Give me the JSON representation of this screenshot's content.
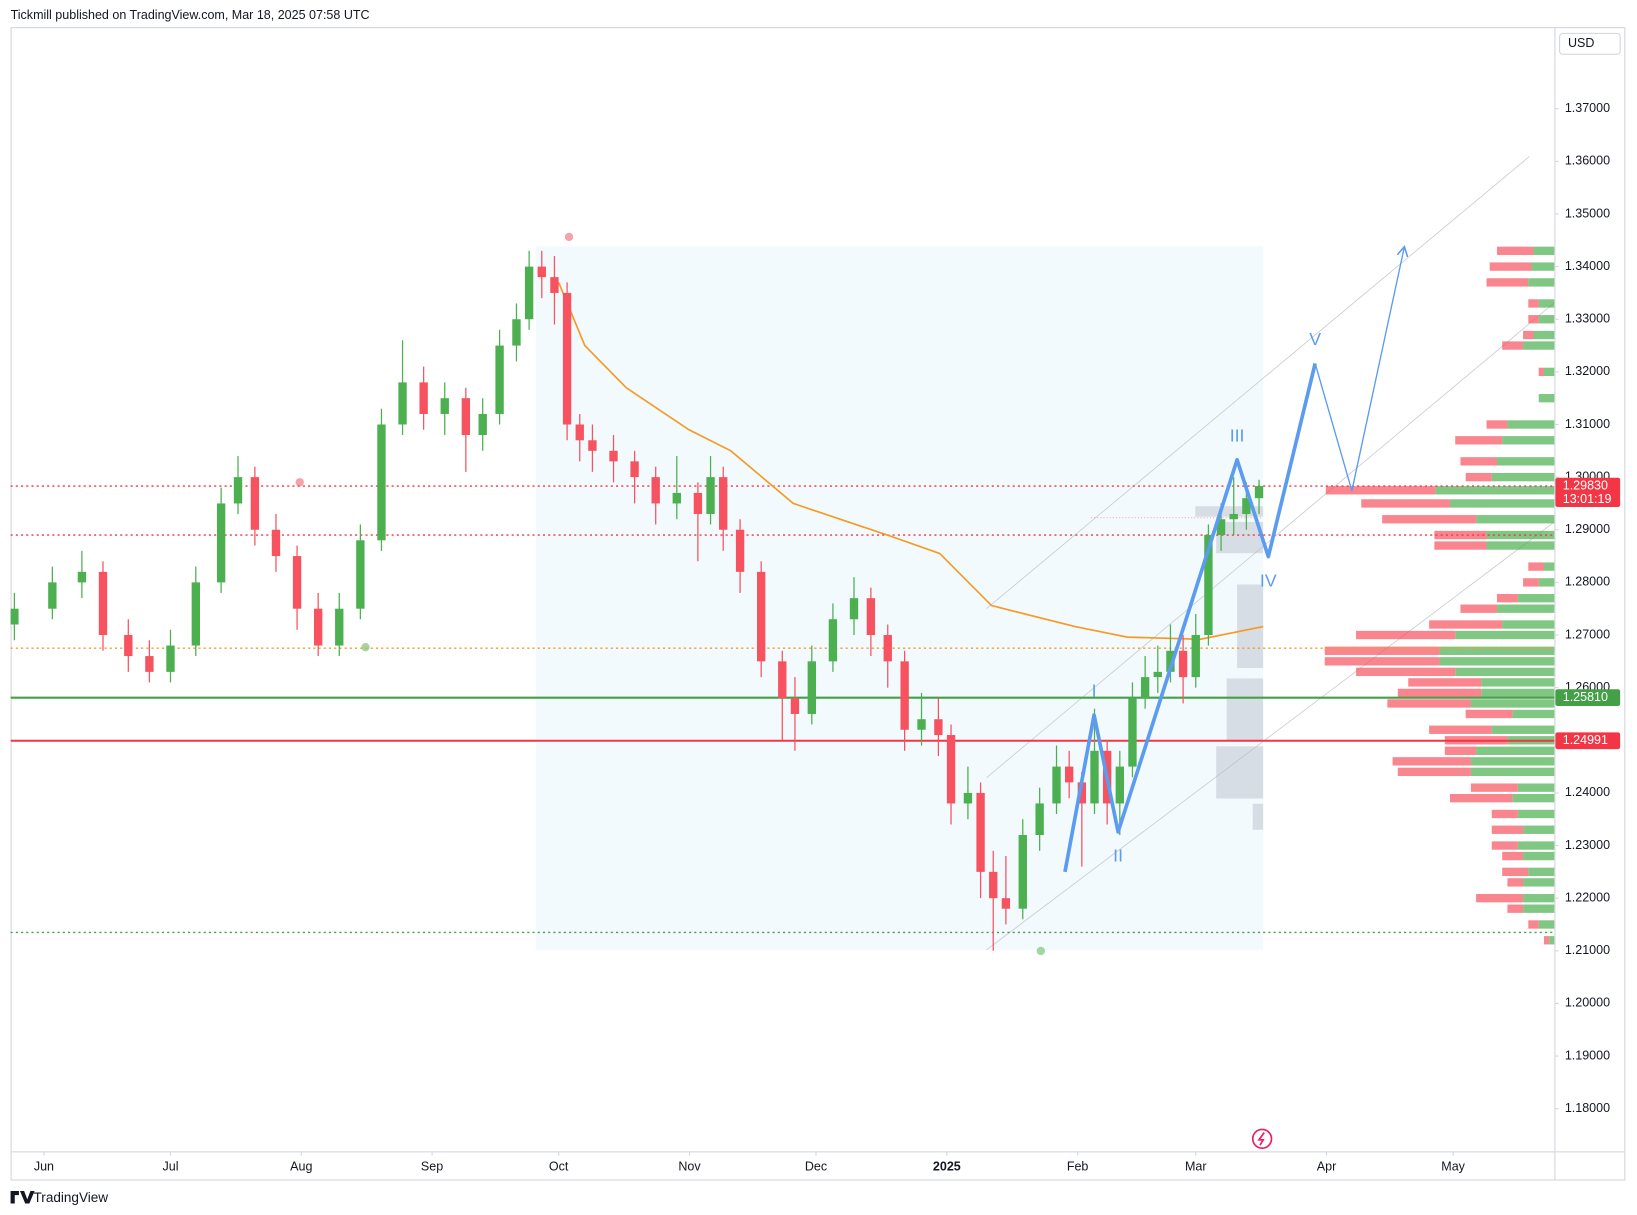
{
  "header": {
    "text": "Tickmill published on TradingView.com, Mar 18, 2025 07:58 UTC"
  },
  "footer": {
    "text": "TradingView"
  },
  "chart_data": {
    "type": "candlestick",
    "currency": "USD",
    "up_color": "#4caf50",
    "down_color": "#f7525f",
    "xlim": [
      -7.9,
      358
    ],
    "ylim": [
      1.1719,
      1.3855
    ],
    "xticks": [
      {
        "value": 0,
        "label": "Jun"
      },
      {
        "value": 30,
        "label": "Jul"
      },
      {
        "value": 61,
        "label": "Aug"
      },
      {
        "value": 92,
        "label": "Sep"
      },
      {
        "value": 122,
        "label": "Oct"
      },
      {
        "value": 153,
        "label": "Nov"
      },
      {
        "value": 183,
        "label": "Dec"
      },
      {
        "value": 214,
        "label": "2025"
      },
      {
        "value": 245,
        "label": "Feb"
      },
      {
        "value": 273,
        "label": "Mar"
      },
      {
        "value": 304,
        "label": "Apr"
      },
      {
        "value": 334,
        "label": "May"
      }
    ],
    "yticks": [
      {
        "value": 1.18,
        "label": "1.18000"
      },
      {
        "value": 1.19,
        "label": "1.19000"
      },
      {
        "value": 1.2,
        "label": "1.20000"
      },
      {
        "value": 1.21,
        "label": "1.21000"
      },
      {
        "value": 1.22,
        "label": "1.22000"
      },
      {
        "value": 1.23,
        "label": "1.23000"
      },
      {
        "value": 1.24,
        "label": "1.24000"
      },
      {
        "value": 1.25,
        "label": "1.25000"
      },
      {
        "value": 1.26,
        "label": "1.26000"
      },
      {
        "value": 1.27,
        "label": "1.27000"
      },
      {
        "value": 1.28,
        "label": "1.28000"
      },
      {
        "value": 1.29,
        "label": "1.29000"
      },
      {
        "value": 1.3,
        "label": "1.30000"
      },
      {
        "value": 1.31,
        "label": "1.31000"
      },
      {
        "value": 1.32,
        "label": "1.32000"
      },
      {
        "value": 1.33,
        "label": "1.33000"
      },
      {
        "value": 1.34,
        "label": "1.34000"
      },
      {
        "value": 1.35,
        "label": "1.35000"
      },
      {
        "value": 1.36,
        "label": "1.36000"
      },
      {
        "value": 1.37,
        "label": "1.37000"
      }
    ],
    "x": [
      -7,
      2,
      9,
      14,
      20,
      25,
      30,
      36,
      42,
      46,
      50,
      55,
      60,
      65,
      70,
      75,
      80,
      85,
      90,
      95,
      100,
      104,
      108,
      112,
      115,
      118,
      121,
      124,
      127,
      130,
      135,
      140,
      145,
      150,
      155,
      158,
      161,
      165,
      170,
      175,
      178,
      182,
      187,
      192,
      196,
      200,
      204,
      208,
      212,
      215,
      219,
      222,
      225,
      228,
      232,
      236,
      240,
      243,
      246,
      249,
      252,
      255,
      258,
      261,
      264,
      267,
      270,
      273,
      276,
      279,
      282,
      285,
      288
    ],
    "ohlc": [
      [
        1.272,
        1.278,
        1.269,
        1.275
      ],
      [
        1.275,
        1.283,
        1.273,
        1.28
      ],
      [
        1.28,
        1.286,
        1.277,
        1.282
      ],
      [
        1.282,
        1.284,
        1.267,
        1.27
      ],
      [
        1.27,
        1.273,
        1.263,
        1.266
      ],
      [
        1.266,
        1.269,
        1.261,
        1.263
      ],
      [
        1.263,
        1.271,
        1.261,
        1.268
      ],
      [
        1.268,
        1.283,
        1.266,
        1.28
      ],
      [
        1.28,
        1.298,
        1.278,
        1.295
      ],
      [
        1.295,
        1.304,
        1.293,
        1.3
      ],
      [
        1.3,
        1.302,
        1.287,
        1.29
      ],
      [
        1.29,
        1.293,
        1.282,
        1.285
      ],
      [
        1.285,
        1.287,
        1.271,
        1.275
      ],
      [
        1.275,
        1.278,
        1.266,
        1.268
      ],
      [
        1.268,
        1.278,
        1.266,
        1.275
      ],
      [
        1.275,
        1.291,
        1.273,
        1.288
      ],
      [
        1.288,
        1.313,
        1.286,
        1.31
      ],
      [
        1.31,
        1.326,
        1.308,
        1.318
      ],
      [
        1.318,
        1.321,
        1.309,
        1.312
      ],
      [
        1.312,
        1.318,
        1.308,
        1.315
      ],
      [
        1.315,
        1.317,
        1.301,
        1.308
      ],
      [
        1.308,
        1.315,
        1.305,
        1.312
      ],
      [
        1.312,
        1.328,
        1.31,
        1.325
      ],
      [
        1.325,
        1.333,
        1.322,
        1.33
      ],
      [
        1.33,
        1.343,
        1.328,
        1.34
      ],
      [
        1.34,
        1.343,
        1.334,
        1.338
      ],
      [
        1.338,
        1.342,
        1.329,
        1.335
      ],
      [
        1.335,
        1.337,
        1.307,
        1.31
      ],
      [
        1.31,
        1.312,
        1.303,
        1.307
      ],
      [
        1.307,
        1.31,
        1.301,
        1.305
      ],
      [
        1.305,
        1.308,
        1.299,
        1.303
      ],
      [
        1.303,
        1.305,
        1.295,
        1.3
      ],
      [
        1.3,
        1.302,
        1.291,
        1.295
      ],
      [
        1.295,
        1.304,
        1.292,
        1.297
      ],
      [
        1.297,
        1.299,
        1.284,
        1.293
      ],
      [
        1.293,
        1.304,
        1.291,
        1.3
      ],
      [
        1.3,
        1.302,
        1.286,
        1.29
      ],
      [
        1.29,
        1.292,
        1.278,
        1.282
      ],
      [
        1.282,
        1.284,
        1.262,
        1.265
      ],
      [
        1.265,
        1.267,
        1.25,
        1.258
      ],
      [
        1.258,
        1.262,
        1.248,
        1.255
      ],
      [
        1.255,
        1.268,
        1.253,
        1.265
      ],
      [
        1.265,
        1.276,
        1.263,
        1.273
      ],
      [
        1.273,
        1.281,
        1.27,
        1.277
      ],
      [
        1.277,
        1.279,
        1.266,
        1.27
      ],
      [
        1.27,
        1.272,
        1.26,
        1.265
      ],
      [
        1.265,
        1.267,
        1.248,
        1.252
      ],
      [
        1.252,
        1.259,
        1.249,
        1.254
      ],
      [
        1.254,
        1.258,
        1.247,
        1.251
      ],
      [
        1.251,
        1.253,
        1.234,
        1.238
      ],
      [
        1.238,
        1.245,
        1.235,
        1.24
      ],
      [
        1.24,
        1.242,
        1.22,
        1.225
      ],
      [
        1.225,
        1.229,
        1.21,
        1.22
      ],
      [
        1.22,
        1.228,
        1.215,
        1.218
      ],
      [
        1.218,
        1.235,
        1.216,
        1.232
      ],
      [
        1.232,
        1.241,
        1.229,
        1.238
      ],
      [
        1.238,
        1.249,
        1.236,
        1.245
      ],
      [
        1.245,
        1.248,
        1.239,
        1.242
      ],
      [
        1.242,
        1.244,
        1.226,
        1.238
      ],
      [
        1.238,
        1.256,
        1.236,
        1.248
      ],
      [
        1.248,
        1.25,
        1.234,
        1.238
      ],
      [
        1.238,
        1.248,
        1.232,
        1.245
      ],
      [
        1.245,
        1.261,
        1.243,
        1.258
      ],
      [
        1.258,
        1.266,
        1.256,
        1.262
      ],
      [
        1.262,
        1.268,
        1.259,
        1.263
      ],
      [
        1.263,
        1.272,
        1.261,
        1.267
      ],
      [
        1.267,
        1.27,
        1.257,
        1.262
      ],
      [
        1.262,
        1.274,
        1.26,
        1.27
      ],
      [
        1.27,
        1.291,
        1.268,
        1.289
      ],
      [
        1.289,
        1.295,
        1.286,
        1.292
      ],
      [
        1.292,
        1.3,
        1.289,
        1.293
      ],
      [
        1.293,
        1.299,
        1.29,
        1.296
      ],
      [
        1.296,
        1.2995,
        1.293,
        1.2983
      ]
    ],
    "ma": {
      "color": "#f59a23",
      "x": [
        122,
        128.2,
        138,
        152.9,
        162.8,
        177.6,
        199.9,
        212.3,
        224.6,
        244.4,
        256.8,
        274.1,
        289
      ],
      "values": [
        1.337,
        1.325,
        1.317,
        1.309,
        1.305,
        1.295,
        1.289,
        1.2855,
        1.2756,
        1.2716,
        1.2696,
        1.2692,
        1.2716
      ]
    },
    "wave": {
      "color": "#5b9cf0",
      "x": [
        242,
        248.9,
        254.6,
        282.8,
        290.2,
        301.3,
        310,
        322.4
      ],
      "values": [
        1.225,
        1.2548,
        1.2326,
        1.3033,
        1.2849,
        1.3216,
        1.2974,
        1.3436
      ],
      "labels": [
        "I",
        "II",
        "III",
        "IV",
        "V"
      ]
    },
    "price_lines": [
      {
        "value": 1.2983,
        "label": "1.29830",
        "countdown": "13:01:19",
        "color": "#f23645",
        "style": "dotted"
      },
      {
        "value": 1.289,
        "color": "#f23645",
        "style": "dotted"
      },
      {
        "value": 1.2675,
        "color": "#f59a23",
        "style": "dotted"
      },
      {
        "value": 1.2581,
        "label": "1.25810",
        "color": "#43a047",
        "style": "solid"
      },
      {
        "value": 1.24991,
        "label": "1.24991",
        "color": "#f23645",
        "style": "solid"
      },
      {
        "value": 1.2135,
        "color": "#43a047",
        "style": "dotted"
      }
    ],
    "volume_profile": {
      "vlim": [
        0,
        230
      ],
      "levels": [
        1.343,
        1.34,
        1.337,
        1.333,
        1.33,
        1.327,
        1.325,
        1.32,
        1.315,
        1.31,
        1.307,
        1.303,
        1.3,
        1.2975,
        1.295,
        1.292,
        1.289,
        1.287,
        1.283,
        1.28,
        1.277,
        1.275,
        1.272,
        1.27,
        1.267,
        1.265,
        1.263,
        1.261,
        1.259,
        1.257,
        1.255,
        1.252,
        1.25,
        1.248,
        1.246,
        1.244,
        1.241,
        1.239,
        1.236,
        1.233,
        1.23,
        1.228,
        1.225,
        1.223,
        1.22,
        1.218,
        1.215,
        1.212
      ],
      "up": [
        20,
        22,
        25,
        15,
        15,
        20,
        30,
        10,
        15,
        45,
        50,
        55,
        60,
        114,
        100,
        75,
        65,
        65,
        10,
        15,
        35,
        55,
        50,
        95,
        110,
        110,
        95,
        70,
        70,
        80,
        40,
        60,
        45,
        75,
        80,
        80,
        35,
        40,
        35,
        30,
        35,
        30,
        25,
        30,
        30,
        30,
        15,
        5
      ],
      "down": [
        35,
        40,
        40,
        10,
        10,
        10,
        20,
        5,
        0,
        20,
        45,
        35,
        25,
        105,
        85,
        90,
        50,
        50,
        15,
        15,
        20,
        35,
        70,
        95,
        110,
        110,
        95,
        70,
        80,
        80,
        45,
        60,
        60,
        30,
        75,
        70,
        45,
        60,
        25,
        30,
        25,
        20,
        25,
        15,
        45,
        15,
        10,
        5
      ]
    }
  }
}
